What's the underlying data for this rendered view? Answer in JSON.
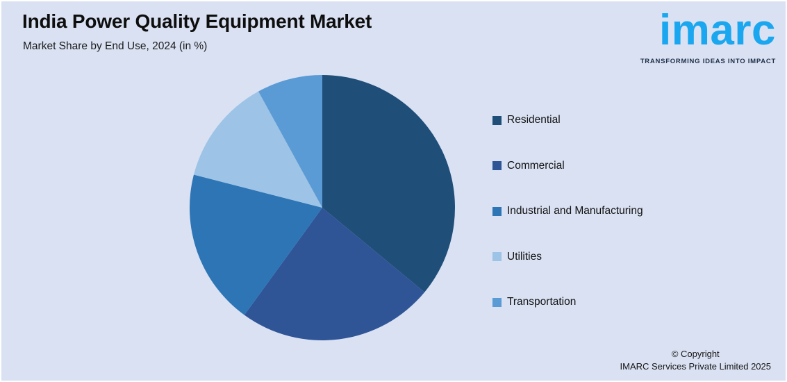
{
  "page": {
    "background": "#d9e1f2",
    "frame_border": "#ffffff"
  },
  "header": {
    "title": "India Power Quality Equipment Market",
    "subtitle": "Market Share by End Use, 2024 (in %)"
  },
  "logo": {
    "wordmark": "imarc",
    "tagline": "TRANSFORMING IDEAS INTO IMPACT",
    "brand_color": "#1AA7F0",
    "tagline_color": "#20304A"
  },
  "chart_data": {
    "type": "pie",
    "title": "India Power Quality Equipment Market",
    "subtitle": "Market Share by End Use, 2024 (in %)",
    "unit": "%",
    "start_angle_deg": 0,
    "direction": "clockwise",
    "legend_position": "right",
    "values_labeled_on_chart": false,
    "series": [
      {
        "name": "Residential",
        "value": 36,
        "color": "#1F4E79"
      },
      {
        "name": "Commercial",
        "value": 24,
        "color": "#2F5597"
      },
      {
        "name": "Industrial and Manufacturing",
        "value": 19,
        "color": "#2E75B6"
      },
      {
        "name": "Utilities",
        "value": 13,
        "color": "#9DC3E6"
      },
      {
        "name": "Transportation",
        "value": 8,
        "color": "#5B9BD5"
      }
    ]
  },
  "footer": {
    "copyright_line1": "© Copyright",
    "copyright_line2": "IMARC Services Private Limited 2025"
  }
}
